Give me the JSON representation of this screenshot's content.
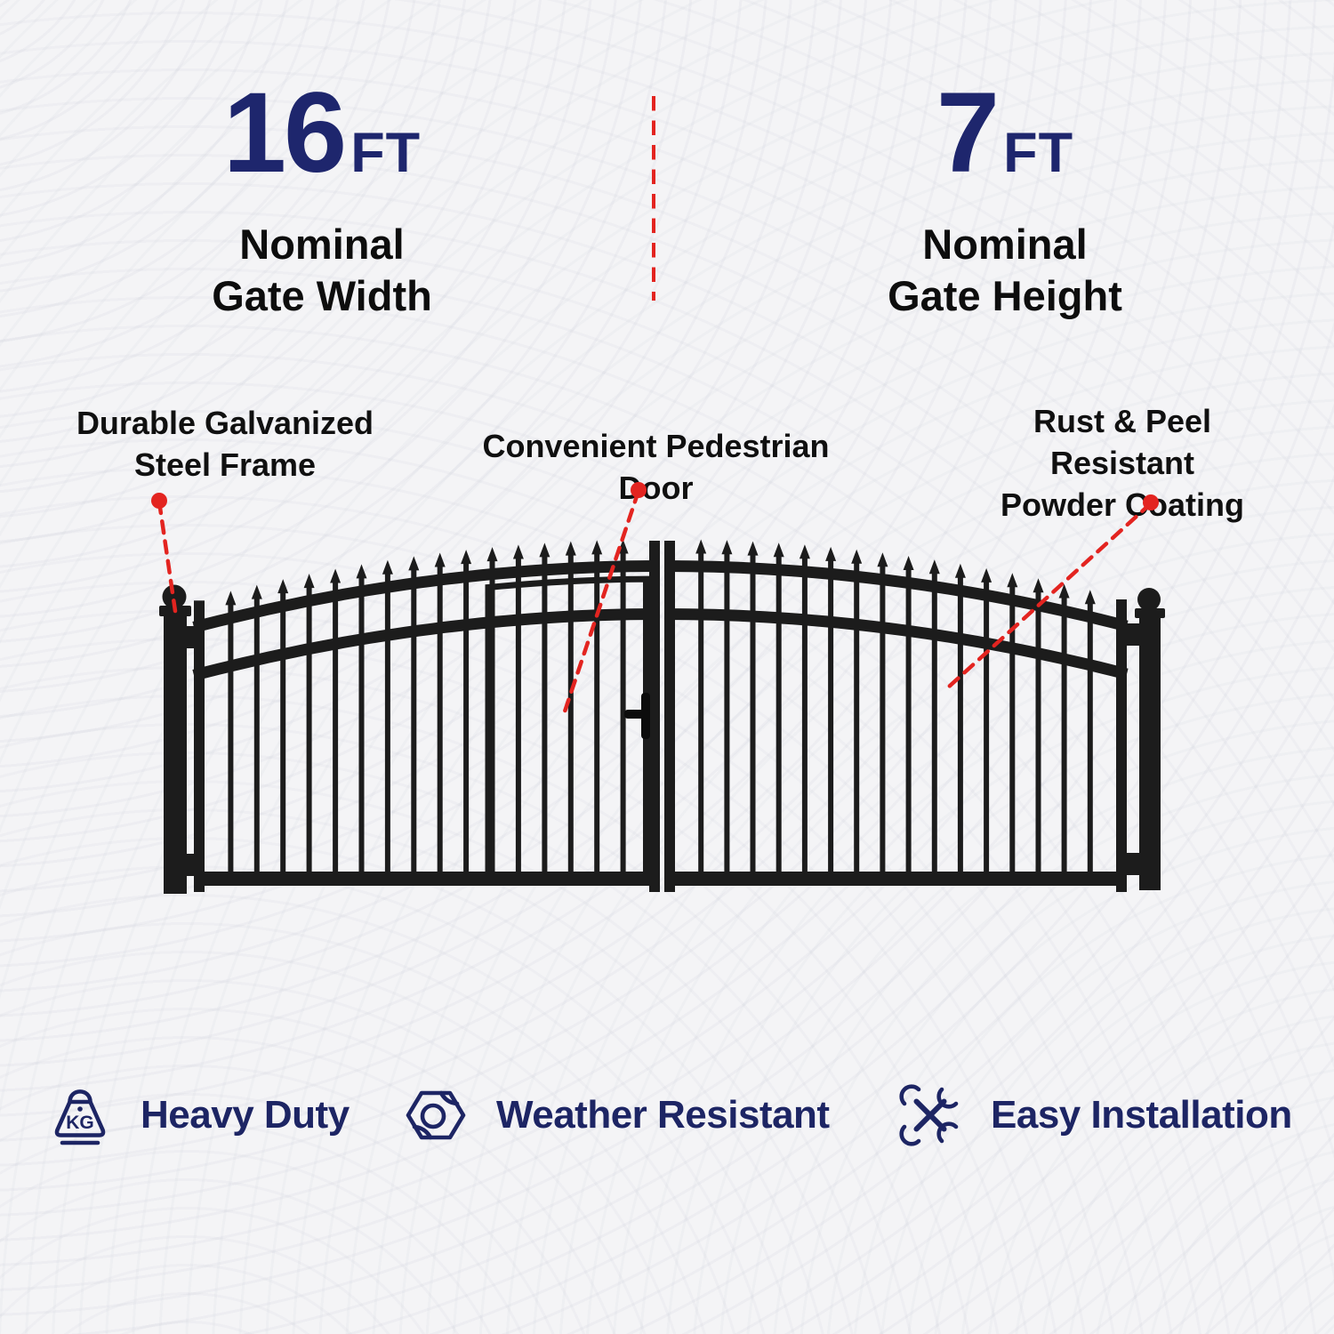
{
  "dimensions": {
    "width": {
      "value": "16",
      "unit": "FT",
      "label_line1": "Nominal",
      "label_line2": "Gate Width"
    },
    "height": {
      "value": "7",
      "unit": "FT",
      "label_line1": "Nominal",
      "label_line2": "Gate Height"
    }
  },
  "callouts": {
    "frame": {
      "line1": "Durable Galvanized",
      "line2": "Steel Frame"
    },
    "door": {
      "line1": "Convenient Pedestrian Door"
    },
    "coating": {
      "line1": "Rust & Peel Resistant",
      "line2": "Powder Coating"
    }
  },
  "features": [
    {
      "icon": "kg-weight-icon",
      "label": "Heavy Duty"
    },
    {
      "icon": "hex-nut-icon",
      "label": "Weather Resistant"
    },
    {
      "icon": "crossed-tools-icon",
      "label": "Easy Installation"
    }
  ],
  "colors": {
    "navy": "#1e266d",
    "navy_text": "#1d2564",
    "black_text": "#0d0d0d",
    "red": "#e32420",
    "gate_black": "#1c1c1c",
    "background": "#f4f4f6"
  }
}
